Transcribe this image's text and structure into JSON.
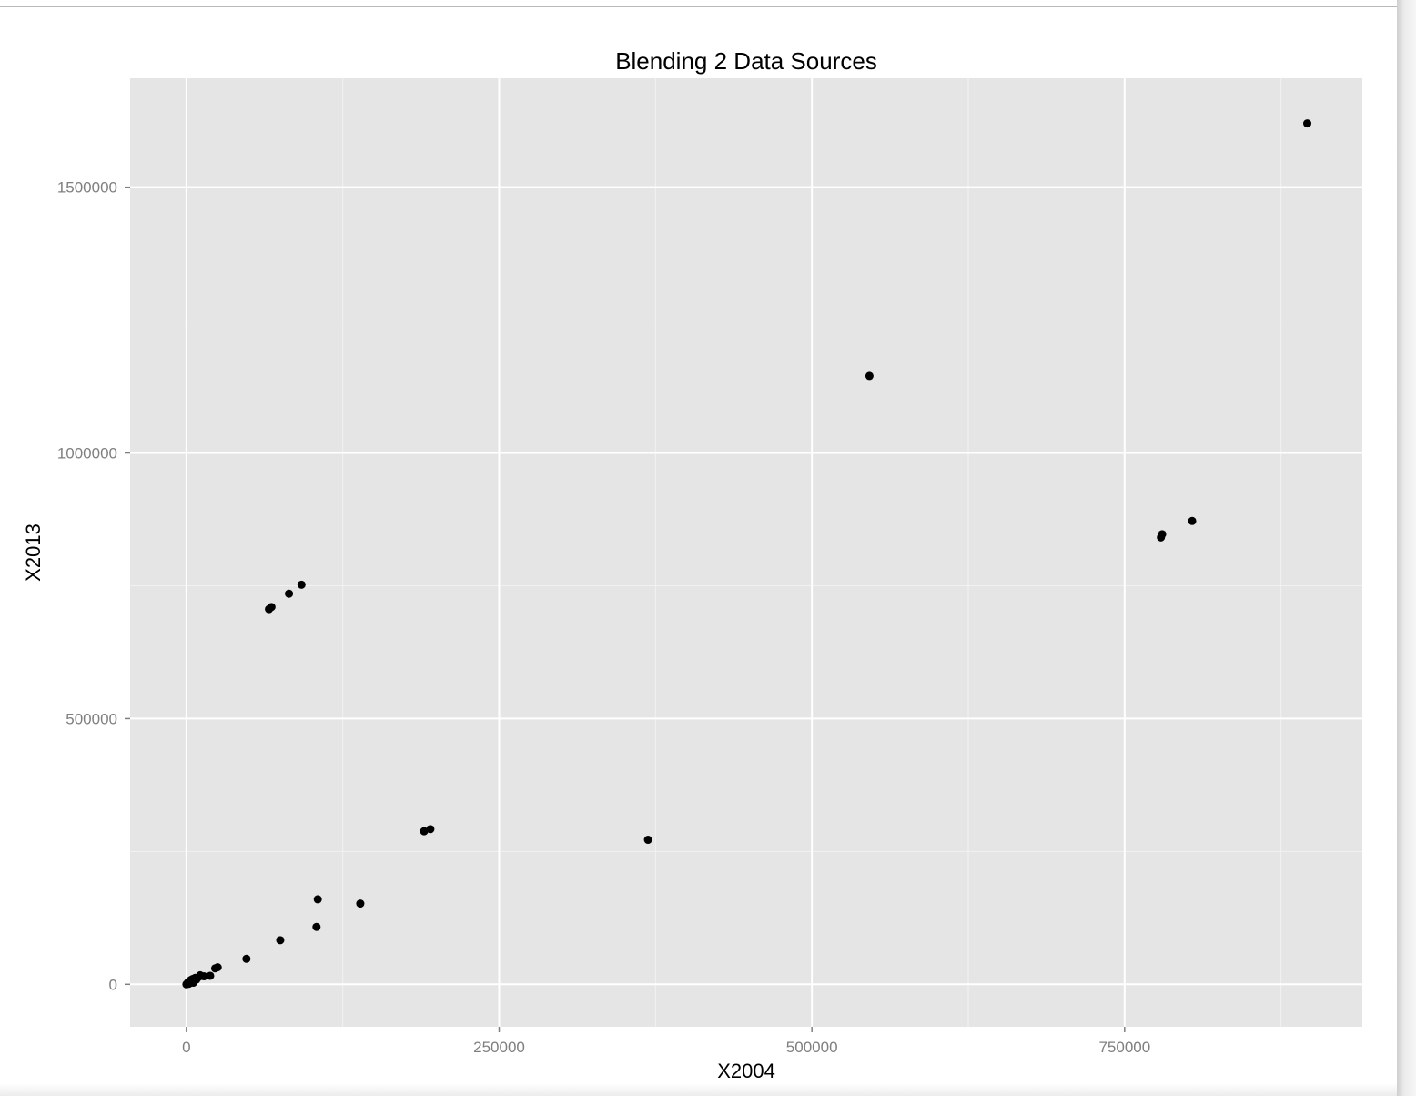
{
  "colors": {
    "panel_background": "#e5e5e5",
    "grid_major": "#ffffff",
    "grid_minor": "#f2f2f2",
    "point": "#000000",
    "tick_label": "#7f7f7f"
  },
  "chart_data": {
    "type": "scatter",
    "title": "Blending 2 Data Sources",
    "xlabel": "X2004",
    "ylabel": "X2013",
    "xlim": [
      -45000,
      940000
    ],
    "ylim": [
      -80000,
      1705000
    ],
    "xticks": [
      0,
      250000,
      500000,
      750000
    ],
    "xtick_labels": [
      "0",
      "250000",
      "500000",
      "750000"
    ],
    "yticks": [
      0,
      500000,
      1000000,
      1500000
    ],
    "ytick_labels": [
      "0",
      "500000",
      "1000000",
      "1500000"
    ],
    "grid": true,
    "legend": "none",
    "points": [
      {
        "x": 0,
        "y": 0
      },
      {
        "x": 800,
        "y": 2000
      },
      {
        "x": 1500,
        "y": 4000
      },
      {
        "x": 2000,
        "y": 1000
      },
      {
        "x": 2500,
        "y": 6000
      },
      {
        "x": 3000,
        "y": 3000
      },
      {
        "x": 3500,
        "y": 8000
      },
      {
        "x": 4000,
        "y": 5000
      },
      {
        "x": 5000,
        "y": 10000
      },
      {
        "x": 5500,
        "y": 3000
      },
      {
        "x": 6000,
        "y": 7000
      },
      {
        "x": 7000,
        "y": 12000
      },
      {
        "x": 8000,
        "y": 9000
      },
      {
        "x": 10000,
        "y": 14000
      },
      {
        "x": 11000,
        "y": 17000
      },
      {
        "x": 14000,
        "y": 15000
      },
      {
        "x": 19000,
        "y": 16000
      },
      {
        "x": 23000,
        "y": 30000
      },
      {
        "x": 25000,
        "y": 32000
      },
      {
        "x": 48000,
        "y": 48000
      },
      {
        "x": 75000,
        "y": 83000
      },
      {
        "x": 104000,
        "y": 108000
      },
      {
        "x": 105000,
        "y": 160000
      },
      {
        "x": 139000,
        "y": 152000
      },
      {
        "x": 66000,
        "y": 706000
      },
      {
        "x": 68000,
        "y": 710000
      },
      {
        "x": 82000,
        "y": 735000
      },
      {
        "x": 92000,
        "y": 752000
      },
      {
        "x": 190000,
        "y": 288000
      },
      {
        "x": 195000,
        "y": 292000
      },
      {
        "x": 369000,
        "y": 272000
      },
      {
        "x": 546000,
        "y": 1145000
      },
      {
        "x": 779000,
        "y": 841000
      },
      {
        "x": 780000,
        "y": 847000
      },
      {
        "x": 804000,
        "y": 872000
      },
      {
        "x": 896000,
        "y": 1620000
      }
    ]
  }
}
